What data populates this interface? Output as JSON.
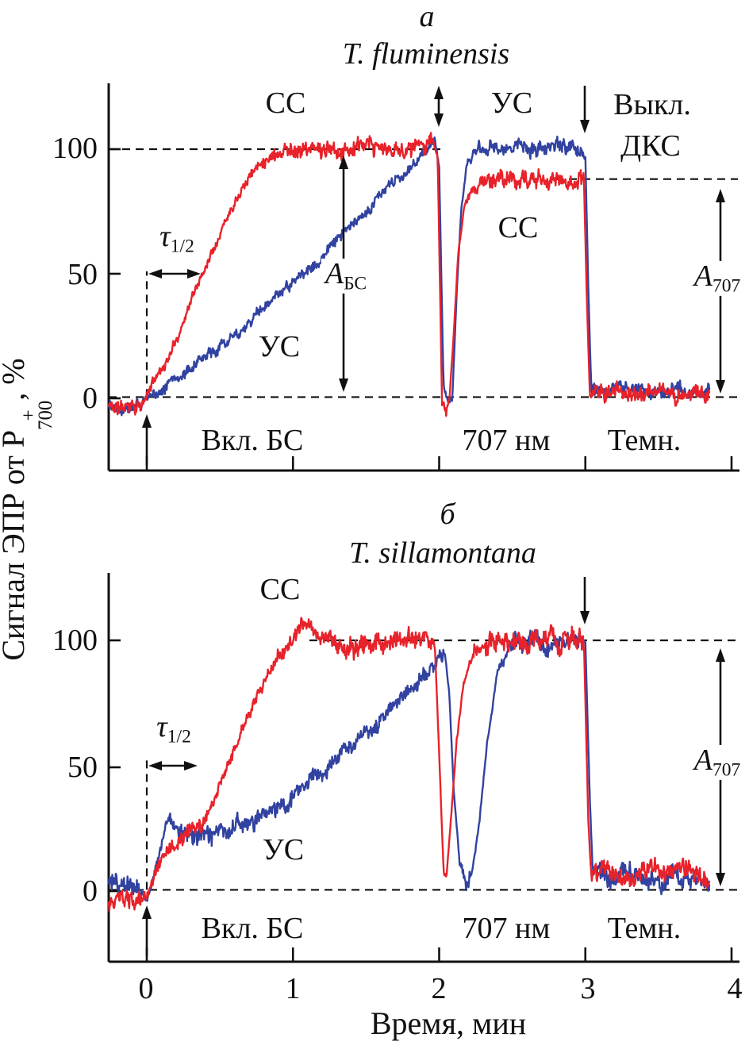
{
  "figure": {
    "y_axis": {
      "label_prefix": "Сигнал ЭПР от Р",
      "p_sup": "+",
      "p_sub": "700",
      "label_suffix": ", %",
      "ticks": [
        "100",
        "50",
        "0"
      ]
    },
    "x_axis": {
      "label": "Время, мин",
      "ticks": [
        "0",
        "1",
        "2",
        "3",
        "4"
      ]
    }
  },
  "colors": {
    "red": "#e8222a",
    "blue": "#3142a0",
    "ink": "#111111"
  },
  "panels": [
    {
      "letter": "а",
      "species": "T. fluminensis",
      "annotations": {
        "cc_top": "СС",
        "us_top": "УС",
        "vykl": "Выкл.",
        "dks": "ДКС",
        "cc_mid": "СС",
        "us_mid": "УС",
        "tau": "τ",
        "tau_sub": "1/2",
        "a_bs": "А",
        "a_bs_sub": "БС",
        "a707": "А",
        "a707_sub": "707",
        "vkl_bs": "Вкл. БС",
        "nm707": "707 нм",
        "temn": "Темн."
      }
    },
    {
      "letter": "б",
      "species": "T. sillamontana",
      "annotations": {
        "cc": "СС",
        "us": "УС",
        "tau": "τ",
        "tau_sub": "1/2",
        "a707": "А",
        "a707_sub": "707",
        "vkl_bs": "Вкл. БС",
        "nm707": "707 нм",
        "temn": "Темн."
      }
    }
  ],
  "chart_data": [
    {
      "type": "line",
      "panel": "а",
      "title": "T. fluminensis",
      "xlabel": "Время, мин",
      "ylabel": "Сигнал ЭПР от Р+700, %",
      "xlim": [
        -0.26,
        4.05
      ],
      "ylim": [
        -28,
        126
      ],
      "ref_lines_pct": [
        100,
        88,
        0
      ],
      "events": [
        {
          "t": 0,
          "label": "Вкл. БС"
        },
        {
          "t": 2,
          "label": "707 нм"
        },
        {
          "t": 3,
          "label": "Выкл. ДКС / Темн."
        }
      ],
      "series": [
        {
          "name": "УС",
          "color_key": "blue",
          "noise_amp": 2.8,
          "seed": 22,
          "points": [
            [
              -0.26,
              -2
            ],
            [
              -0.15,
              -3
            ],
            [
              -0.05,
              -2
            ],
            [
              0,
              -1
            ],
            [
              0.1,
              4
            ],
            [
              0.22,
              9
            ],
            [
              0.35,
              14
            ],
            [
              0.5,
              21
            ],
            [
              0.65,
              28
            ],
            [
              0.8,
              36
            ],
            [
              0.95,
              44
            ],
            [
              1.1,
              51
            ],
            [
              1.25,
              60
            ],
            [
              1.4,
              69
            ],
            [
              1.55,
              78
            ],
            [
              1.68,
              86
            ],
            [
              1.8,
              93
            ],
            [
              1.9,
              99
            ],
            [
              1.97,
              104
            ],
            [
              2.0,
              93
            ],
            [
              2.03,
              5
            ],
            [
              2.06,
              -2
            ],
            [
              2.09,
              0
            ],
            [
              2.12,
              42
            ],
            [
              2.15,
              75
            ],
            [
              2.19,
              95
            ],
            [
              2.26,
              100
            ],
            [
              2.4,
              100
            ],
            [
              2.55,
              101
            ],
            [
              2.7,
              100
            ],
            [
              2.85,
              101
            ],
            [
              2.97,
              100
            ],
            [
              3.0,
              97
            ],
            [
              3.02,
              45
            ],
            [
              3.04,
              4
            ],
            [
              3.15,
              3
            ],
            [
              3.3,
              4
            ],
            [
              3.45,
              2
            ],
            [
              3.6,
              4
            ],
            [
              3.75,
              2
            ],
            [
              3.85,
              3
            ]
          ]
        },
        {
          "name": "СС",
          "color_key": "red",
          "noise_amp": 3.2,
          "seed": 11,
          "points": [
            [
              -0.26,
              -3
            ],
            [
              -0.18,
              -4
            ],
            [
              -0.1,
              -2
            ],
            [
              -0.04,
              -4
            ],
            [
              0,
              1
            ],
            [
              0.06,
              9
            ],
            [
              0.14,
              15
            ],
            [
              0.22,
              26
            ],
            [
              0.3,
              39
            ],
            [
              0.38,
              50
            ],
            [
              0.46,
              61
            ],
            [
              0.55,
              73
            ],
            [
              0.65,
              85
            ],
            [
              0.75,
              93
            ],
            [
              0.85,
              98
            ],
            [
              0.95,
              100
            ],
            [
              1.1,
              100
            ],
            [
              1.3,
              99
            ],
            [
              1.5,
              101
            ],
            [
              1.7,
              99
            ],
            [
              1.88,
              102
            ],
            [
              1.96,
              104
            ],
            [
              1.99,
              96
            ],
            [
              2.02,
              -2
            ],
            [
              2.05,
              -5
            ],
            [
              2.07,
              -1
            ],
            [
              2.1,
              26
            ],
            [
              2.13,
              58
            ],
            [
              2.17,
              76
            ],
            [
              2.23,
              84
            ],
            [
              2.3,
              87
            ],
            [
              2.45,
              88
            ],
            [
              2.6,
              87
            ],
            [
              2.75,
              88
            ],
            [
              2.9,
              87
            ],
            [
              2.99,
              88
            ],
            [
              3.01,
              40
            ],
            [
              3.03,
              3
            ],
            [
              3.12,
              2
            ],
            [
              3.25,
              3
            ],
            [
              3.38,
              1
            ],
            [
              3.5,
              3
            ],
            [
              3.62,
              1
            ],
            [
              3.75,
              3
            ],
            [
              3.85,
              1
            ]
          ]
        }
      ]
    },
    {
      "type": "line",
      "panel": "б",
      "title": "T. sillamontana",
      "xlabel": "Время, мин",
      "ylabel": "Сигнал ЭПР от Р+700, %",
      "xlim": [
        -0.26,
        4.05
      ],
      "ylim": [
        -28,
        127
      ],
      "ref_lines_pct": [
        100,
        0
      ],
      "events": [
        {
          "t": 0,
          "label": "Вкл. БС"
        },
        {
          "t": 2,
          "label": "707 нм"
        },
        {
          "t": 3,
          "label": "Темн."
        }
      ],
      "series": [
        {
          "name": "УС",
          "color_key": "blue",
          "noise_amp": 4.0,
          "seed": 44,
          "points": [
            [
              -0.26,
              4
            ],
            [
              -0.16,
              2
            ],
            [
              -0.06,
              1
            ],
            [
              0,
              -4
            ],
            [
              0.03,
              1
            ],
            [
              0.08,
              14
            ],
            [
              0.12,
              24
            ],
            [
              0.16,
              29
            ],
            [
              0.22,
              24
            ],
            [
              0.3,
              21
            ],
            [
              0.4,
              23
            ],
            [
              0.5,
              24
            ],
            [
              0.6,
              26
            ],
            [
              0.7,
              28
            ],
            [
              0.8,
              31
            ],
            [
              0.9,
              34
            ],
            [
              1.0,
              38
            ],
            [
              1.1,
              43
            ],
            [
              1.2,
              48
            ],
            [
              1.3,
              53
            ],
            [
              1.4,
              58
            ],
            [
              1.5,
              63
            ],
            [
              1.6,
              68
            ],
            [
              1.7,
              74
            ],
            [
              1.8,
              80
            ],
            [
              1.9,
              86
            ],
            [
              1.98,
              91
            ],
            [
              2.04,
              95
            ],
            [
              2.07,
              78
            ],
            [
              2.1,
              40
            ],
            [
              2.14,
              12
            ],
            [
              2.18,
              4
            ],
            [
              2.22,
              6
            ],
            [
              2.27,
              25
            ],
            [
              2.33,
              60
            ],
            [
              2.4,
              88
            ],
            [
              2.48,
              97
            ],
            [
              2.6,
              100
            ],
            [
              2.75,
              99
            ],
            [
              2.9,
              101
            ],
            [
              3.0,
              99
            ],
            [
              3.03,
              38
            ],
            [
              3.05,
              8
            ],
            [
              3.18,
              6
            ],
            [
              3.32,
              7
            ],
            [
              3.46,
              4
            ],
            [
              3.6,
              6
            ],
            [
              3.73,
              5
            ],
            [
              3.85,
              3
            ]
          ]
        },
        {
          "name": "СС",
          "color_key": "red",
          "noise_amp": 4.0,
          "seed": 33,
          "points": [
            [
              -0.26,
              -6
            ],
            [
              -0.17,
              -3
            ],
            [
              -0.08,
              -5
            ],
            [
              0,
              -2
            ],
            [
              0.05,
              6
            ],
            [
              0.1,
              13
            ],
            [
              0.16,
              17
            ],
            [
              0.23,
              20
            ],
            [
              0.3,
              23
            ],
            [
              0.38,
              27
            ],
            [
              0.45,
              35
            ],
            [
              0.52,
              44
            ],
            [
              0.58,
              53
            ],
            [
              0.65,
              63
            ],
            [
              0.72,
              73
            ],
            [
              0.8,
              83
            ],
            [
              0.88,
              92
            ],
            [
              0.97,
              99
            ],
            [
              1.05,
              104
            ],
            [
              1.1,
              107
            ],
            [
              1.16,
              102
            ],
            [
              1.25,
              99
            ],
            [
              1.35,
              97
            ],
            [
              1.5,
              98
            ],
            [
              1.65,
              100
            ],
            [
              1.78,
              99
            ],
            [
              1.9,
              101
            ],
            [
              1.97,
              99
            ],
            [
              2.0,
              55
            ],
            [
              2.03,
              8
            ],
            [
              2.05,
              6
            ],
            [
              2.08,
              28
            ],
            [
              2.12,
              60
            ],
            [
              2.17,
              84
            ],
            [
              2.23,
              95
            ],
            [
              2.32,
              99
            ],
            [
              2.45,
              100
            ],
            [
              2.6,
              99
            ],
            [
              2.72,
              101
            ],
            [
              2.85,
              100
            ],
            [
              2.99,
              100
            ],
            [
              3.02,
              28
            ],
            [
              3.04,
              6
            ],
            [
              3.15,
              8
            ],
            [
              3.28,
              6
            ],
            [
              3.42,
              9
            ],
            [
              3.55,
              6
            ],
            [
              3.68,
              9
            ],
            [
              3.78,
              6
            ],
            [
              3.85,
              4
            ]
          ]
        }
      ]
    }
  ]
}
